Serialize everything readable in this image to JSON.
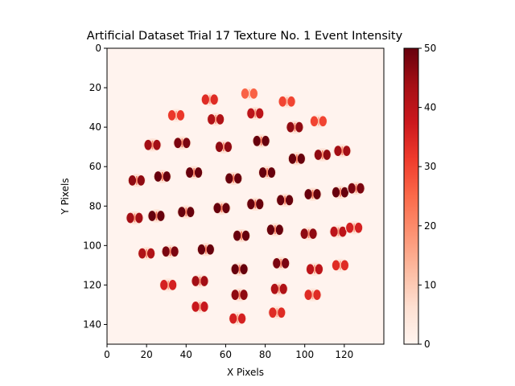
{
  "chart_data": {
    "type": "heatmap",
    "title": "Artificial Dataset Trial 17 Texture No. 1 Event Intensity",
    "xlabel": "X Pixels",
    "ylabel": "Y Pixels",
    "xlim": [
      0,
      140
    ],
    "ylim": [
      150,
      0
    ],
    "xticks": [
      0,
      20,
      40,
      60,
      80,
      100,
      120
    ],
    "yticks": [
      0,
      20,
      40,
      60,
      80,
      100,
      120,
      140
    ],
    "colorbar": {
      "min": 0,
      "max": 50,
      "ticks": [
        0,
        10,
        20,
        30,
        40,
        50
      ],
      "colormap": "Reds"
    },
    "background_level": 1,
    "blobs": [
      {
        "x": 52,
        "y": 26,
        "v": 34
      },
      {
        "x": 72,
        "y": 23,
        "v": 26
      },
      {
        "x": 91,
        "y": 27,
        "v": 30
      },
      {
        "x": 35,
        "y": 34,
        "v": 32
      },
      {
        "x": 55,
        "y": 36,
        "v": 42
      },
      {
        "x": 75,
        "y": 33,
        "v": 40
      },
      {
        "x": 95,
        "y": 40,
        "v": 46
      },
      {
        "x": 107,
        "y": 37,
        "v": 30
      },
      {
        "x": 23,
        "y": 49,
        "v": 44
      },
      {
        "x": 38,
        "y": 48,
        "v": 48
      },
      {
        "x": 59,
        "y": 50,
        "v": 46
      },
      {
        "x": 78,
        "y": 47,
        "v": 50
      },
      {
        "x": 96,
        "y": 56,
        "v": 50
      },
      {
        "x": 109,
        "y": 54,
        "v": 46
      },
      {
        "x": 119,
        "y": 52,
        "v": 44
      },
      {
        "x": 15,
        "y": 67,
        "v": 46
      },
      {
        "x": 28,
        "y": 65,
        "v": 50
      },
      {
        "x": 44,
        "y": 63,
        "v": 50
      },
      {
        "x": 64,
        "y": 66,
        "v": 50
      },
      {
        "x": 81,
        "y": 63,
        "v": 50
      },
      {
        "x": 104,
        "y": 74,
        "v": 50
      },
      {
        "x": 118,
        "y": 73,
        "v": 50
      },
      {
        "x": 126,
        "y": 71,
        "v": 48
      },
      {
        "x": 14,
        "y": 86,
        "v": 44
      },
      {
        "x": 25,
        "y": 85,
        "v": 50
      },
      {
        "x": 40,
        "y": 83,
        "v": 50
      },
      {
        "x": 58,
        "y": 81,
        "v": 50
      },
      {
        "x": 75,
        "y": 79,
        "v": 50
      },
      {
        "x": 90,
        "y": 77,
        "v": 50
      },
      {
        "x": 68,
        "y": 95,
        "v": 50
      },
      {
        "x": 85,
        "y": 92,
        "v": 50
      },
      {
        "x": 102,
        "y": 94,
        "v": 46
      },
      {
        "x": 117,
        "y": 93,
        "v": 40
      },
      {
        "x": 125,
        "y": 91,
        "v": 36
      },
      {
        "x": 20,
        "y": 104,
        "v": 42
      },
      {
        "x": 32,
        "y": 103,
        "v": 48
      },
      {
        "x": 50,
        "y": 102,
        "v": 50
      },
      {
        "x": 67,
        "y": 112,
        "v": 50
      },
      {
        "x": 88,
        "y": 109,
        "v": 48
      },
      {
        "x": 105,
        "y": 112,
        "v": 40
      },
      {
        "x": 118,
        "y": 110,
        "v": 34
      },
      {
        "x": 31,
        "y": 120,
        "v": 36
      },
      {
        "x": 47,
        "y": 118,
        "v": 44
      },
      {
        "x": 67,
        "y": 125,
        "v": 46
      },
      {
        "x": 87,
        "y": 122,
        "v": 42
      },
      {
        "x": 104,
        "y": 125,
        "v": 34
      },
      {
        "x": 47,
        "y": 131,
        "v": 38
      },
      {
        "x": 66,
        "y": 137,
        "v": 36
      },
      {
        "x": 86,
        "y": 134,
        "v": 34
      }
    ]
  }
}
